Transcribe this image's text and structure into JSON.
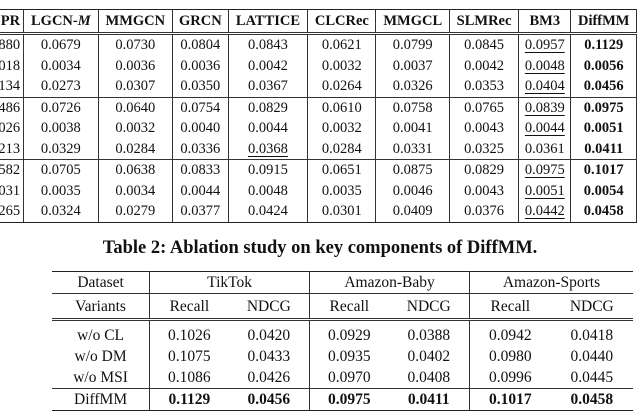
{
  "table1": {
    "headers": [
      "PR",
      "LGCN-M",
      "MMGCN",
      "GRCN",
      "LATTICE",
      "CLCRec",
      "MMGCL",
      "SLMRec",
      "BM3",
      "DiffMM"
    ],
    "rows": [
      [
        "880",
        "0.0679",
        "0.0730",
        "0.0804",
        "0.0843",
        "0.0621",
        "0.0799",
        "0.0845",
        "0.0957",
        "0.1129"
      ],
      [
        "018",
        "0.0034",
        "0.0036",
        "0.0036",
        "0.0042",
        "0.0032",
        "0.0037",
        "0.0042",
        "0.0048",
        "0.0056"
      ],
      [
        "134",
        "0.0273",
        "0.0307",
        "0.0350",
        "0.0367",
        "0.0264",
        "0.0326",
        "0.0353",
        "0.0404",
        "0.0456"
      ],
      [
        "486",
        "0.0726",
        "0.0640",
        "0.0754",
        "0.0829",
        "0.0610",
        "0.0758",
        "0.0765",
        "0.0839",
        "0.0975"
      ],
      [
        "026",
        "0.0038",
        "0.0032",
        "0.0040",
        "0.0044",
        "0.0032",
        "0.0041",
        "0.0043",
        "0.0044",
        "0.0051"
      ],
      [
        "213",
        "0.0329",
        "0.0284",
        "0.0336",
        "0.0368",
        "0.0284",
        "0.0331",
        "0.0325",
        "0.0361",
        "0.0411"
      ],
      [
        "582",
        "0.0705",
        "0.0638",
        "0.0833",
        "0.0915",
        "0.0651",
        "0.0875",
        "0.0829",
        "0.0975",
        "0.1017"
      ],
      [
        "031",
        "0.0035",
        "0.0034",
        "0.0044",
        "0.0048",
        "0.0035",
        "0.0046",
        "0.0043",
        "0.0051",
        "0.0054"
      ],
      [
        "265",
        "0.0324",
        "0.0279",
        "0.0377",
        "0.0424",
        "0.0301",
        "0.0409",
        "0.0376",
        "0.0442",
        "0.0458"
      ]
    ]
  },
  "table2": {
    "caption": "Table 2: Ablation study on key components of DiffMM.",
    "dataset_label": "Dataset",
    "variants_label": "Variants",
    "datasets": [
      "TikTok",
      "Amazon-Baby",
      "Amazon-Sports"
    ],
    "metrics": [
      "Recall",
      "NDCG"
    ],
    "rows": [
      [
        "w/o CL",
        "0.1026",
        "0.0420",
        "0.0929",
        "0.0388",
        "0.0942",
        "0.0418"
      ],
      [
        "w/o DM",
        "0.1075",
        "0.0433",
        "0.0935",
        "0.0402",
        "0.0980",
        "0.0440"
      ],
      [
        "w/o MSI",
        "0.1086",
        "0.0426",
        "0.0970",
        "0.0408",
        "0.0996",
        "0.0445"
      ],
      [
        "DiffMM",
        "0.1129",
        "0.0456",
        "0.0975",
        "0.0411",
        "0.1017",
        "0.0458"
      ]
    ]
  }
}
